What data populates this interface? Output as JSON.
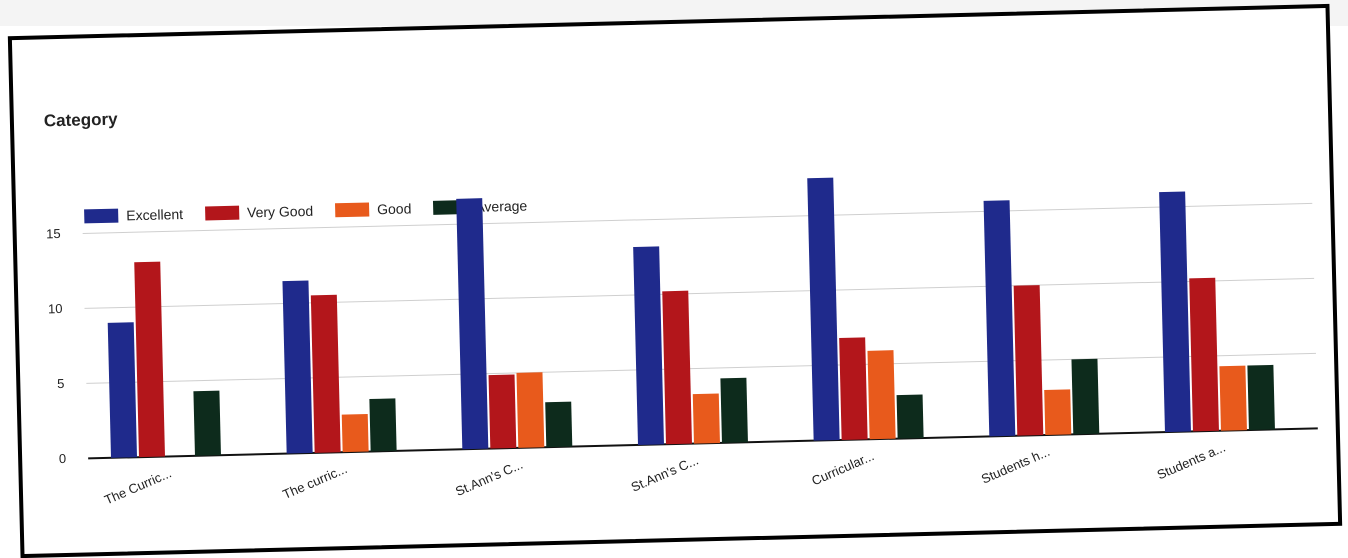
{
  "chart_data": {
    "type": "bar",
    "title": "Category",
    "categories": [
      "The Curric...",
      "The curric...",
      "St.Ann's C...",
      "St.Ann's C...",
      "Curricular...",
      "Students h...",
      "Students a..."
    ],
    "series": [
      {
        "name": "Excellent",
        "color": "#1f2a8c",
        "values": [
          9,
          11.5,
          16.7,
          13.2,
          17.5,
          15.7,
          16
        ]
      },
      {
        "name": "Very Good",
        "color": "#b3161b",
        "values": [
          13,
          10.5,
          4.9,
          10.2,
          6.8,
          10,
          10.2
        ]
      },
      {
        "name": "Good",
        "color": "#e85a1c",
        "values": [
          0,
          2.5,
          5,
          3.3,
          5.9,
          3,
          4.3
        ]
      },
      {
        "name": "Average",
        "color": "#0d2b1c",
        "values": [
          4.3,
          3.5,
          3,
          4.3,
          2.9,
          5,
          4.3
        ]
      }
    ],
    "ylim": [
      0,
      18
    ],
    "yticks": [
      0,
      5,
      10,
      15
    ],
    "grid": true,
    "legend": "top-left"
  }
}
